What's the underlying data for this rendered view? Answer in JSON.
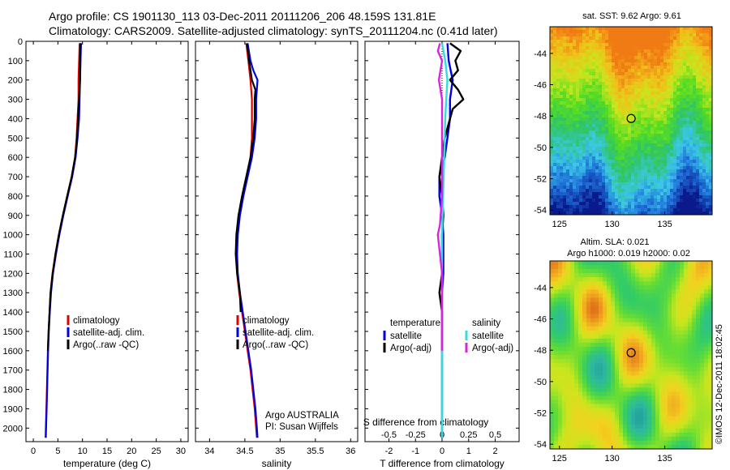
{
  "header": {
    "title_line1": "Argo profile: CS 1901130_113 03-Dec-2011 20111206_206 48.159S 131.81E",
    "title_line2": "Climatology: CARS2009. Satellite-adjusted climatology: synTS_20111204.nc (0.41d later)"
  },
  "colors": {
    "climatology": "#e00000",
    "satellite": "#0000e0",
    "argo": "#000000",
    "satellite_salinity": "#33dddd",
    "argo_salinity": "#dd22dd",
    "sst_map_palette": [
      "#0a1a8c",
      "#1f6fd8",
      "#3cc8e8",
      "#2ec46a",
      "#55dd22",
      "#c8e61e",
      "#f0c018",
      "#f07a14"
    ],
    "sla_map_palette": [
      "#1e9a9a",
      "#2fb8a0",
      "#33cc66",
      "#66dd33",
      "#c8e61e",
      "#f2d21e",
      "#f0a020",
      "#d85c14"
    ]
  },
  "chart_data": [
    {
      "type": "line",
      "id": "temperature",
      "xlabel": "temperature (deg C)",
      "xlim": [
        -1.5,
        31.5
      ],
      "xticks": [
        0,
        5,
        10,
        15,
        20,
        25,
        30
      ],
      "ylim": [
        0,
        2070
      ],
      "yticks": [
        0,
        100,
        200,
        300,
        400,
        500,
        600,
        700,
        800,
        900,
        1000,
        1100,
        1200,
        1300,
        1400,
        1500,
        1600,
        1700,
        1800,
        1900,
        2000
      ],
      "yreversed": true,
      "legend": {
        "position": "lower-right",
        "entries": [
          "climatology",
          "satellite-adj. clim.",
          "Argo(..raw -QC)"
        ]
      },
      "series": [
        {
          "name": "climatology",
          "color_key": "climatology",
          "points": [
            [
              9.4,
              10
            ],
            [
              9.3,
              100
            ],
            [
              9.2,
              200
            ],
            [
              9.2,
              300
            ],
            [
              9.0,
              400
            ],
            [
              8.8,
              500
            ],
            [
              8.5,
              600
            ],
            [
              7.8,
              700
            ],
            [
              6.9,
              800
            ],
            [
              6.0,
              900
            ],
            [
              5.2,
              1000
            ],
            [
              4.5,
              1100
            ],
            [
              3.9,
              1200
            ],
            [
              3.5,
              1300
            ],
            [
              3.3,
              1400
            ],
            [
              3.1,
              1500
            ],
            [
              2.95,
              1600
            ],
            [
              2.85,
              1700
            ],
            [
              2.75,
              1800
            ],
            [
              2.65,
              1900
            ],
            [
              2.55,
              2000
            ],
            [
              2.5,
              2050
            ]
          ]
        },
        {
          "name": "satellite-adj. clim.",
          "color_key": "satellite",
          "points": [
            [
              9.7,
              10
            ],
            [
              9.6,
              100
            ],
            [
              9.5,
              200
            ],
            [
              9.4,
              300
            ],
            [
              9.3,
              400
            ],
            [
              9.0,
              500
            ],
            [
              8.6,
              600
            ],
            [
              7.9,
              700
            ],
            [
              7.0,
              800
            ],
            [
              6.1,
              900
            ],
            [
              5.3,
              1000
            ],
            [
              4.6,
              1100
            ],
            [
              4.0,
              1200
            ],
            [
              3.6,
              1300
            ],
            [
              3.35,
              1400
            ],
            [
              3.15,
              1500
            ],
            [
              3.0,
              1600
            ],
            [
              2.9,
              1700
            ],
            [
              2.8,
              1800
            ],
            [
              2.7,
              1900
            ],
            [
              2.6,
              2000
            ],
            [
              2.55,
              2050
            ]
          ]
        },
        {
          "name": "Argo(..raw -QC)",
          "color_key": "argo",
          "points": [
            [
              9.6,
              10
            ],
            [
              9.5,
              100
            ],
            [
              9.5,
              200
            ],
            [
              9.3,
              300
            ],
            [
              9.1,
              400
            ],
            [
              8.9,
              500
            ],
            [
              8.5,
              600
            ],
            [
              7.8,
              700
            ],
            [
              6.9,
              800
            ],
            [
              6.0,
              900
            ],
            [
              5.2,
              1000
            ],
            [
              4.5,
              1100
            ],
            [
              3.95,
              1200
            ],
            [
              3.5,
              1300
            ],
            [
              3.3,
              1400
            ],
            [
              3.1,
              1500
            ],
            [
              2.95,
              1600
            ]
          ]
        }
      ]
    },
    {
      "type": "line",
      "id": "salinity",
      "xlabel": "salinity",
      "xlim": [
        33.8,
        36.1
      ],
      "xticks": [
        34,
        34.5,
        35,
        35.5,
        36
      ],
      "ylim": [
        0,
        2070
      ],
      "yreversed": true,
      "legend": {
        "position": "lower-right",
        "entries": [
          "climatology",
          "satellite-adj. clim.",
          "Argo(..raw -QC)"
        ]
      },
      "annotation": [
        "Argo AUSTRALIA",
        "PI: Susan Wijffels"
      ],
      "series": [
        {
          "name": "climatology",
          "color_key": "climatology",
          "points": [
            [
              34.52,
              10
            ],
            [
              34.55,
              100
            ],
            [
              34.58,
              200
            ],
            [
              34.6,
              300
            ],
            [
              34.6,
              400
            ],
            [
              34.6,
              500
            ],
            [
              34.58,
              600
            ],
            [
              34.53,
              700
            ],
            [
              34.47,
              800
            ],
            [
              34.42,
              900
            ],
            [
              34.39,
              1000
            ],
            [
              34.38,
              1100
            ],
            [
              34.39,
              1200
            ],
            [
              34.42,
              1300
            ],
            [
              34.46,
              1400
            ],
            [
              34.5,
              1500
            ],
            [
              34.54,
              1600
            ],
            [
              34.58,
              1700
            ],
            [
              34.61,
              1800
            ],
            [
              34.64,
              1900
            ],
            [
              34.66,
              2000
            ],
            [
              34.67,
              2050
            ]
          ]
        },
        {
          "name": "satellite-adj. clim.",
          "color_key": "satellite",
          "points": [
            [
              34.54,
              10
            ],
            [
              34.58,
              100
            ],
            [
              34.62,
              150
            ],
            [
              34.68,
              200
            ],
            [
              34.66,
              300
            ],
            [
              34.66,
              400
            ],
            [
              34.64,
              500
            ],
            [
              34.6,
              600
            ],
            [
              34.54,
              700
            ],
            [
              34.48,
              800
            ],
            [
              34.43,
              900
            ],
            [
              34.4,
              1000
            ],
            [
              34.39,
              1100
            ],
            [
              34.4,
              1200
            ],
            [
              34.43,
              1300
            ],
            [
              34.47,
              1400
            ],
            [
              34.51,
              1500
            ],
            [
              34.55,
              1600
            ],
            [
              34.59,
              1700
            ],
            [
              34.62,
              1800
            ],
            [
              34.65,
              1900
            ],
            [
              34.67,
              2000
            ],
            [
              34.68,
              2050
            ]
          ]
        },
        {
          "name": "Argo(..raw -QC)",
          "color_key": "argo",
          "points": [
            [
              34.53,
              10
            ],
            [
              34.56,
              100
            ],
            [
              34.6,
              200
            ],
            [
              34.65,
              250
            ],
            [
              34.64,
              300
            ],
            [
              34.64,
              400
            ],
            [
              34.62,
              500
            ],
            [
              34.58,
              600
            ],
            [
              34.52,
              700
            ],
            [
              34.46,
              800
            ],
            [
              34.41,
              900
            ],
            [
              34.38,
              1000
            ],
            [
              34.37,
              1100
            ],
            [
              34.39,
              1200
            ],
            [
              34.43,
              1300
            ],
            [
              34.44,
              1400
            ]
          ]
        }
      ]
    },
    {
      "type": "line",
      "id": "differences",
      "xlabel": "T difference from climatology",
      "xlabel_top": "S difference from climatology",
      "xlim": [
        -2.9,
        2.9
      ],
      "xticks": [
        -2,
        -1,
        0,
        1,
        2
      ],
      "xticks_s": [
        -0.5,
        -0.25,
        0,
        0.25,
        0.5
      ],
      "ylim": [
        0,
        2070
      ],
      "yreversed": true,
      "legend": {
        "position": "lower-center",
        "temperature_title": "temperature",
        "temperature_entries": [
          "satellite",
          "Argo(-adj)"
        ],
        "salinity_title": "salinity",
        "salinity_entries": [
          "satellite",
          "Argo(-adj)"
        ]
      },
      "series": [
        {
          "name": "temperature satellite",
          "color_key": "satellite",
          "points": [
            [
              0.2,
              10
            ],
            [
              0.25,
              100
            ],
            [
              0.4,
              200
            ],
            [
              0.3,
              300
            ],
            [
              0.3,
              400
            ],
            [
              0.2,
              500
            ],
            [
              0.1,
              600
            ],
            [
              -0.1,
              700
            ],
            [
              -0.1,
              800
            ],
            [
              0.0,
              900
            ],
            [
              0.05,
              1000
            ],
            [
              0.05,
              1100
            ],
            [
              0.05,
              1200
            ],
            [
              0.0,
              1300
            ],
            [
              0.0,
              1400
            ],
            [
              0.0,
              1500
            ],
            [
              0.0,
              1600
            ],
            [
              0.0,
              2050
            ]
          ]
        },
        {
          "name": "temperature Argo(-adj)",
          "color_key": "argo",
          "points": [
            [
              0.3,
              10
            ],
            [
              0.7,
              50
            ],
            [
              0.5,
              100
            ],
            [
              0.6,
              150
            ],
            [
              0.3,
              200
            ],
            [
              0.6,
              250
            ],
            [
              0.8,
              300
            ],
            [
              0.4,
              350
            ],
            [
              0.3,
              400
            ],
            [
              0.1,
              500
            ],
            [
              0.0,
              600
            ],
            [
              -0.1,
              700
            ],
            [
              0.0,
              800
            ],
            [
              0.05,
              900
            ],
            [
              0.0,
              1000
            ],
            [
              0.0,
              1200
            ],
            [
              -0.1,
              1300
            ],
            [
              0.0,
              1400
            ],
            [
              0.0,
              1500
            ],
            [
              0.0,
              1600
            ]
          ]
        },
        {
          "name": "salinity satellite",
          "color_key": "satellite_salinity",
          "points": [
            [
              0.0,
              10
            ],
            [
              0.03,
              100
            ],
            [
              0.05,
              200
            ],
            [
              0.04,
              300
            ],
            [
              0.03,
              400
            ],
            [
              0.02,
              600
            ],
            [
              0.01,
              800
            ],
            [
              0.0,
              1000
            ],
            [
              0.0,
              1500
            ],
            [
              0.0,
              2050
            ]
          ]
        },
        {
          "name": "salinity Argo(-adj)",
          "color_key": "argo_salinity",
          "points": [
            [
              -0.02,
              10
            ],
            [
              -0.04,
              50
            ],
            [
              0.0,
              100
            ],
            [
              -0.03,
              200
            ],
            [
              0.0,
              300
            ],
            [
              0.0,
              400
            ],
            [
              0.0,
              600
            ],
            [
              0.0,
              800
            ],
            [
              -0.02,
              950
            ],
            [
              -0.04,
              1000
            ],
            [
              -0.03,
              1050
            ],
            [
              -0.02,
              1100
            ],
            [
              0.0,
              1200
            ],
            [
              0.0,
              1400
            ],
            [
              0.0,
              1600
            ]
          ]
        }
      ]
    },
    {
      "type": "heatmap",
      "id": "sst_map",
      "title": "sat. SST: 9.62  Argo: 9.61",
      "xlim": [
        124.1,
        139.5
      ],
      "xticks": [
        125,
        130,
        135
      ],
      "ylim": [
        -54.3,
        -42.3
      ],
      "yticks": [
        -54,
        -52,
        -50,
        -48,
        -46,
        -44
      ],
      "marker": {
        "lon": 131.81,
        "lat": -48.159
      }
    },
    {
      "type": "heatmap",
      "id": "sla_map",
      "title_line1": "Altim. SLA: 0.021",
      "title_line2": "Argo h1000: 0.019  h2000: 0.02",
      "xlim": [
        124.1,
        139.5
      ],
      "xticks": [
        125,
        130,
        135
      ],
      "ylim": [
        -54.3,
        -42.3
      ],
      "yticks": [
        -54,
        -52,
        -50,
        -48,
        -46,
        -44
      ],
      "marker": {
        "lon": 131.81,
        "lat": -48.159
      }
    }
  ],
  "footer": {
    "credit": "©IMOS 12-Dec-2011 18:02:45"
  }
}
